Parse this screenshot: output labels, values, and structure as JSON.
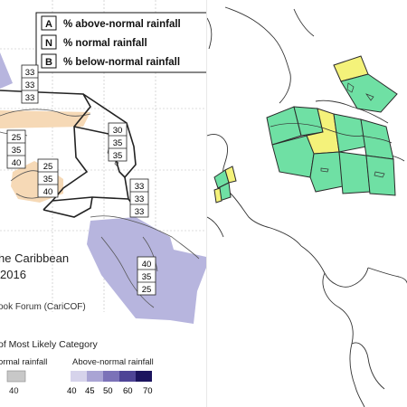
{
  "legend_box": {
    "rows": [
      {
        "key": "A",
        "label": "% above-normal rainfall"
      },
      {
        "key": "N",
        "label": "% normal rainfall"
      },
      {
        "key": "B",
        "label": "% below-normal rainfall"
      }
    ]
  },
  "map_title": {
    "line1": "he Caribbean",
    "line2": "2016"
  },
  "credit": "ook Forum (CariCOF)",
  "probability_legend": {
    "title": "of Most Likely Category",
    "normal": {
      "label": "ormal rainfall",
      "values": [
        "40"
      ]
    },
    "above_normal": {
      "label": "Above-normal rainfall",
      "values": [
        "40",
        "45",
        "50",
        "60",
        "70"
      ]
    }
  },
  "forecast_boxes": [
    {
      "A": "33",
      "N": "33",
      "B": "33"
    },
    {
      "A": "25",
      "N": "35",
      "B": "40"
    },
    {
      "A": "25",
      "N": "35",
      "B": "40"
    },
    {
      "A": "30",
      "N": "35",
      "B": "35"
    },
    {
      "A": "33",
      "N": "33",
      "B": "33"
    },
    {
      "A": "40",
      "N": "35",
      "B": "25"
    }
  ],
  "colors": {
    "above_normal_purple": "#b7b5de",
    "below_normal_tan": "#f6d9b6",
    "yellow_region": "#f4f27a",
    "green_region": "#6fe0a4",
    "gray_normal": "#c8c8c8",
    "legend_scale": [
      "#d6d3eb",
      "#a9a4d4",
      "#7b72b8",
      "#4e4496",
      "#1c145e"
    ]
  }
}
